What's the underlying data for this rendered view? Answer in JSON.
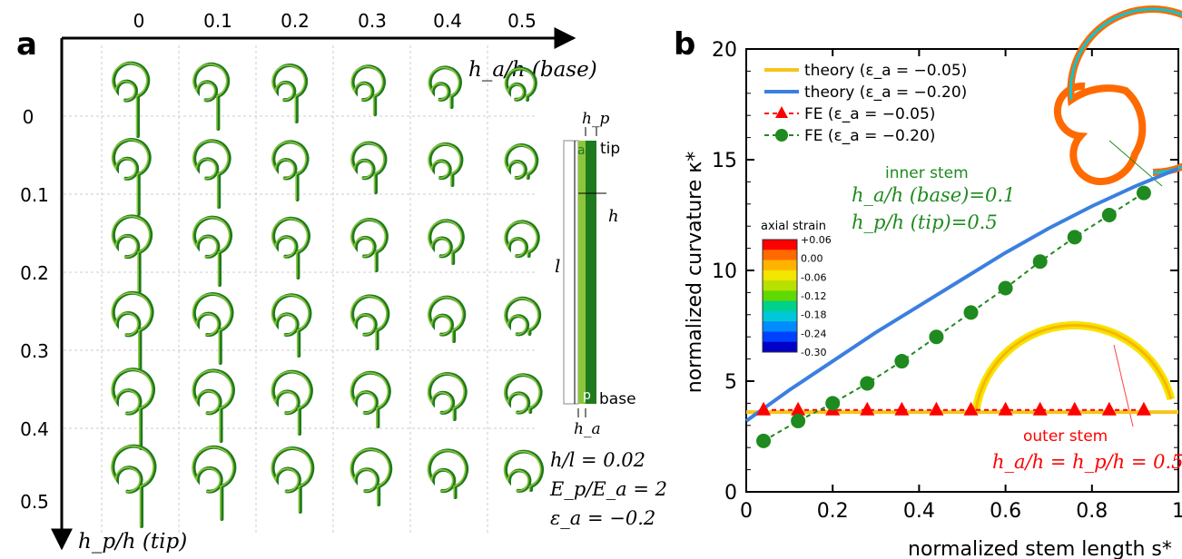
{
  "panel_a": {
    "label": "a",
    "col_ticks": [
      "0",
      "0.1",
      "0.2",
      "0.3",
      "0.4",
      "0.5"
    ],
    "row_ticks": [
      "0",
      "0.1",
      "0.2",
      "0.3",
      "0.4",
      "0.5"
    ],
    "x_axis_label": "h_a/h (base)",
    "y_axis_label": "h_p/h (tip)",
    "schematic": {
      "hp": "h_p",
      "tip": "tip",
      "a": "a",
      "h": "h",
      "l": "l",
      "p": "p",
      "base": "base",
      "ha": "h_a"
    },
    "params": [
      "h/l = 0.02",
      "E_p/E_a = 2",
      "ε_a = −0.2"
    ],
    "colors": {
      "dark_green": "#1f7a1f",
      "light_green": "#8bc63a"
    }
  },
  "chart_data": {
    "type": "line",
    "panel_label": "b",
    "xlabel": "normalized stem length s*",
    "ylabel": "normalized curvature κ*",
    "xlim": [
      0,
      1
    ],
    "ylim": [
      0,
      20
    ],
    "xticks": [
      "0",
      "0.2",
      "0.4",
      "0.6",
      "0.8",
      "1"
    ],
    "yticks": [
      "0",
      "5",
      "10",
      "15",
      "20"
    ],
    "grid": false,
    "legend_placement": "top-left",
    "series": [
      {
        "name": "theory (ε_a = −0.05)",
        "kind": "line",
        "color": "#f5c518",
        "x": [
          0,
          1
        ],
        "y": [
          3.6,
          3.6
        ]
      },
      {
        "name": "theory (ε_a = −0.20)",
        "kind": "line",
        "color": "#3b7fe0",
        "x": [
          0,
          0.1,
          0.2,
          0.3,
          0.4,
          0.5,
          0.6,
          0.7,
          0.8,
          0.9,
          1.0
        ],
        "y": [
          3.2,
          4.6,
          5.9,
          7.2,
          8.4,
          9.6,
          10.8,
          11.9,
          12.9,
          13.8,
          14.6
        ]
      },
      {
        "name": "FE (ε_a = −0.05)",
        "kind": "markers-dashed",
        "marker": "triangle",
        "color": "#ff0000",
        "x": [
          0.04,
          0.12,
          0.2,
          0.28,
          0.36,
          0.44,
          0.52,
          0.6,
          0.68,
          0.76,
          0.84,
          0.92
        ],
        "y": [
          3.7,
          3.7,
          3.7,
          3.7,
          3.7,
          3.7,
          3.7,
          3.7,
          3.7,
          3.7,
          3.7,
          3.7
        ]
      },
      {
        "name": "FE (ε_a = −0.20)",
        "kind": "markers-dashed",
        "marker": "circle",
        "color": "#1f8a1f",
        "x": [
          0.04,
          0.12,
          0.2,
          0.28,
          0.36,
          0.44,
          0.52,
          0.6,
          0.68,
          0.76,
          0.84,
          0.92
        ],
        "y": [
          2.3,
          3.2,
          4.0,
          4.9,
          5.9,
          7.0,
          8.1,
          9.2,
          10.4,
          11.5,
          12.5,
          13.5
        ]
      }
    ],
    "annotations": {
      "inner_stem": {
        "title": "inner stem",
        "line1": "h_a/h (base)=0.1",
        "line2": "h_p/h (tip)=0.5",
        "color": "#1f8a1f"
      },
      "outer_stem": {
        "title": "outer stem",
        "line1": "h_a/h = h_p/h = 0.5",
        "color": "#ff0000"
      }
    },
    "colorbar": {
      "title": "axial strain",
      "ticks": [
        "+0.06",
        "0.00",
        "-0.06",
        "-0.12",
        "-0.18",
        "-0.24",
        "-0.30"
      ],
      "colors": [
        "#ff0000",
        "#ff6a00",
        "#ffb300",
        "#f2e600",
        "#b8e000",
        "#5fd900",
        "#00d08a",
        "#00c8d8",
        "#008cff",
        "#0040ff",
        "#0000c8"
      ]
    }
  }
}
